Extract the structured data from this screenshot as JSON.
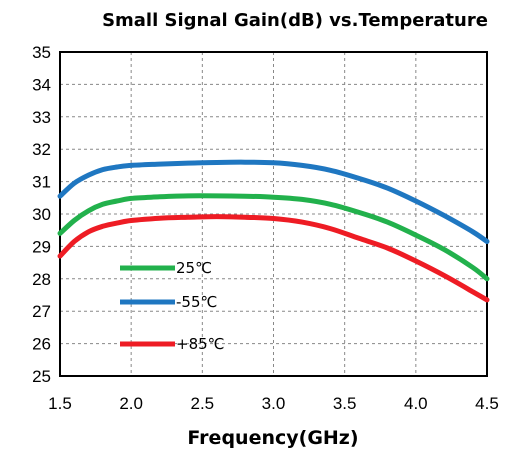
{
  "chart_data": {
    "type": "line",
    "title": "Small Signal Gain(dB) vs.Temperature",
    "xlabel": "Frequency(GHz)",
    "ylabel": "",
    "xlim": [
      1.5,
      4.5
    ],
    "ylim": [
      25,
      35
    ],
    "xticks": [
      "1.5",
      "2.0",
      "2.5",
      "3.0",
      "3.5",
      "4.0",
      "4.5"
    ],
    "yticks": [
      "25",
      "26",
      "27",
      "28",
      "29",
      "30",
      "31",
      "32",
      "33",
      "34",
      "35"
    ],
    "grid": true,
    "legend_position": "lower-left",
    "series": [
      {
        "name": "25℃",
        "color": "#22b14c",
        "x": [
          1.5,
          1.6,
          1.7,
          1.8,
          1.9,
          2.0,
          2.2,
          2.4,
          2.6,
          2.8,
          3.0,
          3.2,
          3.4,
          3.6,
          3.8,
          4.0,
          4.2,
          4.4,
          4.5
        ],
        "y": [
          29.4,
          29.8,
          30.1,
          30.3,
          30.4,
          30.48,
          30.53,
          30.56,
          30.56,
          30.55,
          30.52,
          30.45,
          30.3,
          30.05,
          29.75,
          29.35,
          28.9,
          28.35,
          28.0
        ]
      },
      {
        "name": "-55℃",
        "color": "#1f77c1",
        "x": [
          1.5,
          1.6,
          1.7,
          1.8,
          1.9,
          2.0,
          2.2,
          2.4,
          2.6,
          2.8,
          3.0,
          3.2,
          3.4,
          3.6,
          3.8,
          4.0,
          4.2,
          4.4,
          4.5
        ],
        "y": [
          30.55,
          30.95,
          31.2,
          31.37,
          31.45,
          31.5,
          31.54,
          31.57,
          31.59,
          31.6,
          31.58,
          31.5,
          31.35,
          31.1,
          30.8,
          30.4,
          29.95,
          29.45,
          29.15
        ]
      },
      {
        "name": "+85℃",
        "color": "#ee1c24",
        "x": [
          1.5,
          1.6,
          1.7,
          1.8,
          1.9,
          2.0,
          2.2,
          2.4,
          2.6,
          2.8,
          3.0,
          3.2,
          3.4,
          3.6,
          3.8,
          4.0,
          4.2,
          4.4,
          4.5
        ],
        "y": [
          28.7,
          29.15,
          29.45,
          29.62,
          29.72,
          29.8,
          29.87,
          29.9,
          29.92,
          29.9,
          29.86,
          29.75,
          29.55,
          29.25,
          28.95,
          28.55,
          28.1,
          27.6,
          27.35
        ]
      }
    ]
  }
}
